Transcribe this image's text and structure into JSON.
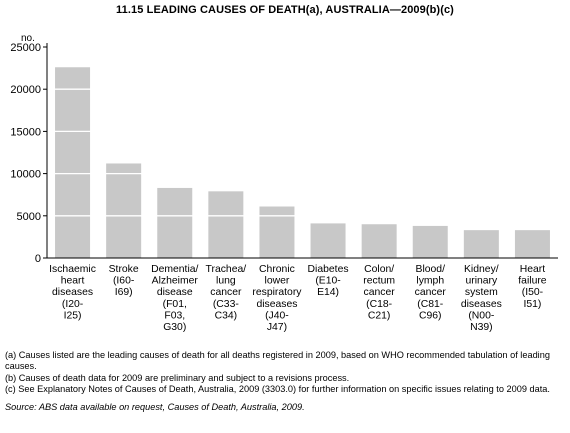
{
  "chart_data": {
    "type": "bar",
    "title": "11.15 LEADING CAUSES OF DEATH(a), AUSTRALIA—2009(b)(c)",
    "ylabel": "no.",
    "ylim": [
      0,
      25000
    ],
    "yticks": [
      0,
      5000,
      10000,
      15000,
      20000,
      25000
    ],
    "grid": "white horizontal lines across bars",
    "bar_color": "#c8c8c8",
    "categories": [
      [
        "Ischaemic",
        "heart",
        "diseases",
        "(I20-",
        "I25)"
      ],
      [
        "Stroke",
        "(I60-",
        "I69)"
      ],
      [
        "Dementia/",
        "Alzheimer",
        "disease",
        "(F01,",
        "F03,",
        "G30)"
      ],
      [
        "Trachea/",
        "lung",
        "cancer",
        "(C33-",
        "C34)"
      ],
      [
        "Chronic",
        "lower",
        "respiratory",
        "diseases",
        "(J40-",
        "J47)"
      ],
      [
        "Diabetes",
        "(E10-",
        "E14)"
      ],
      [
        "Colon/",
        "rectum",
        "cancer",
        "(C18-",
        "C21)"
      ],
      [
        "Blood/",
        "lymph",
        "cancer",
        "(C81-",
        "C96)"
      ],
      [
        "Kidney/",
        "urinary",
        "system",
        "diseases",
        "(N00-",
        "N39)"
      ],
      [
        "Heart",
        "failure",
        "(I50-",
        "I51)"
      ]
    ],
    "values": [
      22600,
      11200,
      8300,
      7900,
      6100,
      4100,
      4000,
      3800,
      3300,
      3300
    ]
  },
  "notes": {
    "a": "(a) Causes listed are the leading causes of death for all deaths registered in 2009, based on WHO recommended tabulation of leading causes.",
    "b": "(b) Causes of death data for 2009 are preliminary and subject to a revisions process.",
    "c": "(c) See Explanatory Notes of Causes of Death, Australia, 2009 (3303.0) for further information on specific issues relating to 2009 data.",
    "source": "Source: ABS data available on request, Causes of Death, Australia, 2009."
  }
}
